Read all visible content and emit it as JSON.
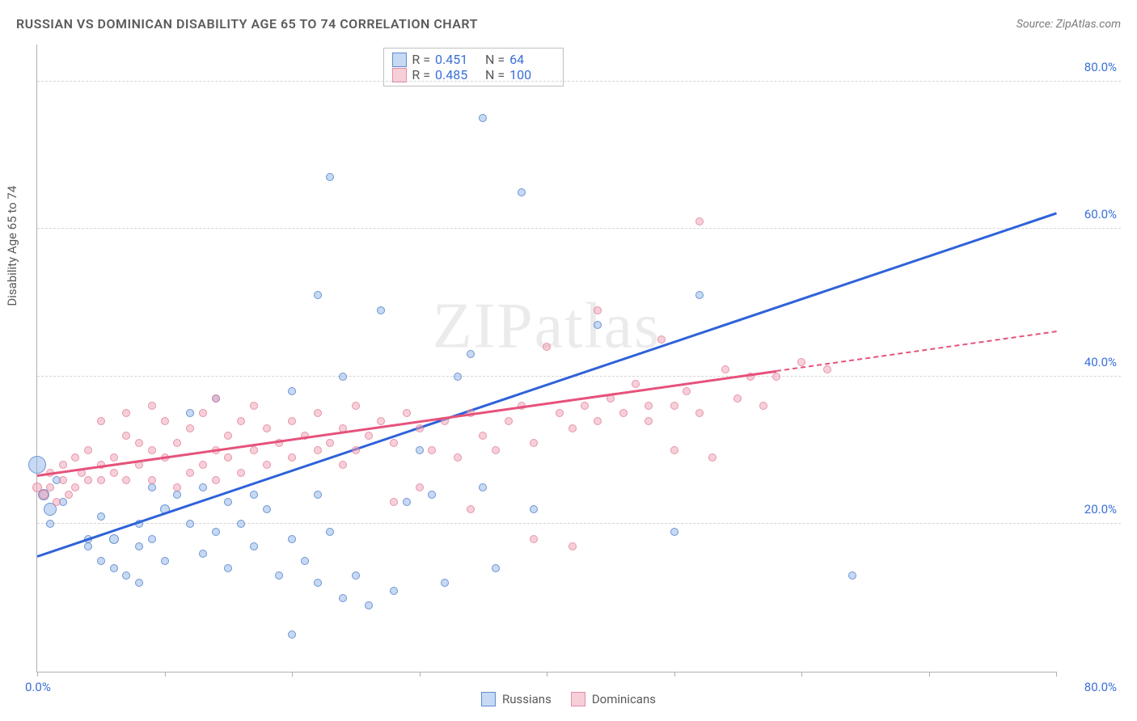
{
  "title": "RUSSIAN VS DOMINICAN DISABILITY AGE 65 TO 74 CORRELATION CHART",
  "source": "Source: ZipAtlas.com",
  "watermark": "ZIPatlas",
  "yaxis_label": "Disability Age 65 to 74",
  "chart": {
    "type": "scatter",
    "xlim": [
      0,
      80
    ],
    "ylim": [
      0,
      85
    ],
    "xticks": [
      0,
      10,
      20,
      30,
      40,
      50,
      60,
      70,
      80
    ],
    "yticks": [
      20,
      40,
      60,
      80
    ],
    "xaxis_labels": {
      "left": "0.0%",
      "right": "80.0%"
    },
    "yaxis_labels": [
      "20.0%",
      "40.0%",
      "60.0%",
      "80.0%"
    ],
    "grid_color": "#d5d5d5",
    "axis_color": "#b0b0b0",
    "background_color": "#ffffff",
    "series": [
      {
        "name": "Russians",
        "color_fill": "rgba(144,180,232,0.5)",
        "color_stroke": "rgba(70,120,200,0.7)",
        "trend_color": "#2e62d9",
        "trend": {
          "x1": 0,
          "y1": 15.5,
          "x2": 80,
          "y2": 62,
          "solid_until_x": 80
        },
        "R": "0.451",
        "N": "64",
        "points": [
          {
            "x": 0,
            "y": 28,
            "r": 22
          },
          {
            "x": 0.5,
            "y": 24,
            "r": 14
          },
          {
            "x": 1,
            "y": 22,
            "r": 16
          },
          {
            "x": 1,
            "y": 20,
            "r": 10
          },
          {
            "x": 1.5,
            "y": 26,
            "r": 10
          },
          {
            "x": 2,
            "y": 23,
            "r": 10
          },
          {
            "x": 4,
            "y": 18,
            "r": 10
          },
          {
            "x": 4,
            "y": 17,
            "r": 10
          },
          {
            "x": 5,
            "y": 21,
            "r": 10
          },
          {
            "x": 5,
            "y": 15,
            "r": 10
          },
          {
            "x": 6,
            "y": 18,
            "r": 12
          },
          {
            "x": 6,
            "y": 14,
            "r": 10
          },
          {
            "x": 7,
            "y": 13,
            "r": 10
          },
          {
            "x": 8,
            "y": 17,
            "r": 10
          },
          {
            "x": 8,
            "y": 20,
            "r": 10
          },
          {
            "x": 8,
            "y": 12,
            "r": 10
          },
          {
            "x": 9,
            "y": 18,
            "r": 10
          },
          {
            "x": 9,
            "y": 25,
            "r": 10
          },
          {
            "x": 10,
            "y": 22,
            "r": 12
          },
          {
            "x": 10,
            "y": 15,
            "r": 10
          },
          {
            "x": 11,
            "y": 24,
            "r": 10
          },
          {
            "x": 12,
            "y": 35,
            "r": 10
          },
          {
            "x": 12,
            "y": 20,
            "r": 10
          },
          {
            "x": 13,
            "y": 25,
            "r": 10
          },
          {
            "x": 13,
            "y": 16,
            "r": 10
          },
          {
            "x": 14,
            "y": 19,
            "r": 10
          },
          {
            "x": 14,
            "y": 37,
            "r": 10
          },
          {
            "x": 15,
            "y": 23,
            "r": 10
          },
          {
            "x": 15,
            "y": 14,
            "r": 10
          },
          {
            "x": 16,
            "y": 20,
            "r": 10
          },
          {
            "x": 17,
            "y": 24,
            "r": 10
          },
          {
            "x": 17,
            "y": 17,
            "r": 10
          },
          {
            "x": 18,
            "y": 22,
            "r": 10
          },
          {
            "x": 19,
            "y": 13,
            "r": 10
          },
          {
            "x": 20,
            "y": 38,
            "r": 10
          },
          {
            "x": 20,
            "y": 18,
            "r": 10
          },
          {
            "x": 20,
            "y": 5,
            "r": 10
          },
          {
            "x": 21,
            "y": 15,
            "r": 10
          },
          {
            "x": 22,
            "y": 24,
            "r": 10
          },
          {
            "x": 22,
            "y": 51,
            "r": 10
          },
          {
            "x": 22,
            "y": 12,
            "r": 10
          },
          {
            "x": 23,
            "y": 19,
            "r": 10
          },
          {
            "x": 23,
            "y": 67,
            "r": 10
          },
          {
            "x": 24,
            "y": 40,
            "r": 10
          },
          {
            "x": 24,
            "y": 10,
            "r": 10
          },
          {
            "x": 25,
            "y": 13,
            "r": 10
          },
          {
            "x": 26,
            "y": 9,
            "r": 10
          },
          {
            "x": 27,
            "y": 49,
            "r": 10
          },
          {
            "x": 28,
            "y": 11,
            "r": 10
          },
          {
            "x": 29,
            "y": 23,
            "r": 10
          },
          {
            "x": 30,
            "y": 30,
            "r": 10
          },
          {
            "x": 31,
            "y": 24,
            "r": 10
          },
          {
            "x": 32,
            "y": 12,
            "r": 10
          },
          {
            "x": 33,
            "y": 40,
            "r": 10
          },
          {
            "x": 34,
            "y": 43,
            "r": 10
          },
          {
            "x": 35,
            "y": 25,
            "r": 10
          },
          {
            "x": 35,
            "y": 75,
            "r": 10
          },
          {
            "x": 36,
            "y": 14,
            "r": 10
          },
          {
            "x": 38,
            "y": 65,
            "r": 10
          },
          {
            "x": 39,
            "y": 22,
            "r": 10
          },
          {
            "x": 44,
            "y": 47,
            "r": 10
          },
          {
            "x": 50,
            "y": 19,
            "r": 10
          },
          {
            "x": 52,
            "y": 51,
            "r": 10
          },
          {
            "x": 64,
            "y": 13,
            "r": 10
          }
        ]
      },
      {
        "name": "Dominicans",
        "color_fill": "rgba(240,160,180,0.5)",
        "color_stroke": "rgba(220,110,140,0.6)",
        "trend_color": "#e6527a",
        "trend": {
          "x1": 0,
          "y1": 26.5,
          "x2": 80,
          "y2": 46,
          "solid_until_x": 58
        },
        "R": "0.485",
        "N": "100",
        "points": [
          {
            "x": 0,
            "y": 25,
            "r": 12
          },
          {
            "x": 0.5,
            "y": 24,
            "r": 12
          },
          {
            "x": 1,
            "y": 27,
            "r": 10
          },
          {
            "x": 1,
            "y": 25,
            "r": 10
          },
          {
            "x": 1.5,
            "y": 23,
            "r": 10
          },
          {
            "x": 2,
            "y": 28,
            "r": 10
          },
          {
            "x": 2,
            "y": 26,
            "r": 10
          },
          {
            "x": 2.5,
            "y": 24,
            "r": 10
          },
          {
            "x": 3,
            "y": 29,
            "r": 10
          },
          {
            "x": 3,
            "y": 25,
            "r": 10
          },
          {
            "x": 3.5,
            "y": 27,
            "r": 10
          },
          {
            "x": 4,
            "y": 26,
            "r": 10
          },
          {
            "x": 4,
            "y": 30,
            "r": 10
          },
          {
            "x": 5,
            "y": 28,
            "r": 10
          },
          {
            "x": 5,
            "y": 26,
            "r": 10
          },
          {
            "x": 5,
            "y": 34,
            "r": 10
          },
          {
            "x": 6,
            "y": 29,
            "r": 10
          },
          {
            "x": 6,
            "y": 27,
            "r": 10
          },
          {
            "x": 7,
            "y": 26,
            "r": 10
          },
          {
            "x": 7,
            "y": 32,
            "r": 10
          },
          {
            "x": 7,
            "y": 35,
            "r": 10
          },
          {
            "x": 8,
            "y": 28,
            "r": 10
          },
          {
            "x": 8,
            "y": 31,
            "r": 10
          },
          {
            "x": 9,
            "y": 26,
            "r": 10
          },
          {
            "x": 9,
            "y": 30,
            "r": 10
          },
          {
            "x": 9,
            "y": 36,
            "r": 10
          },
          {
            "x": 10,
            "y": 29,
            "r": 10
          },
          {
            "x": 10,
            "y": 34,
            "r": 10
          },
          {
            "x": 11,
            "y": 25,
            "r": 10
          },
          {
            "x": 11,
            "y": 31,
            "r": 10
          },
          {
            "x": 12,
            "y": 27,
            "r": 10
          },
          {
            "x": 12,
            "y": 33,
            "r": 10
          },
          {
            "x": 13,
            "y": 28,
            "r": 10
          },
          {
            "x": 13,
            "y": 35,
            "r": 10
          },
          {
            "x": 14,
            "y": 26,
            "r": 10
          },
          {
            "x": 14,
            "y": 30,
            "r": 10
          },
          {
            "x": 14,
            "y": 37,
            "r": 10
          },
          {
            "x": 15,
            "y": 29,
            "r": 10
          },
          {
            "x": 15,
            "y": 32,
            "r": 10
          },
          {
            "x": 16,
            "y": 27,
            "r": 10
          },
          {
            "x": 16,
            "y": 34,
            "r": 10
          },
          {
            "x": 17,
            "y": 30,
            "r": 10
          },
          {
            "x": 17,
            "y": 36,
            "r": 10
          },
          {
            "x": 18,
            "y": 28,
            "r": 10
          },
          {
            "x": 18,
            "y": 33,
            "r": 10
          },
          {
            "x": 19,
            "y": 31,
            "r": 10
          },
          {
            "x": 20,
            "y": 29,
            "r": 10
          },
          {
            "x": 20,
            "y": 34,
            "r": 10
          },
          {
            "x": 21,
            "y": 32,
            "r": 10
          },
          {
            "x": 22,
            "y": 30,
            "r": 10
          },
          {
            "x": 22,
            "y": 35,
            "r": 10
          },
          {
            "x": 23,
            "y": 31,
            "r": 10
          },
          {
            "x": 24,
            "y": 28,
            "r": 10
          },
          {
            "x": 24,
            "y": 33,
            "r": 10
          },
          {
            "x": 25,
            "y": 30,
            "r": 10
          },
          {
            "x": 25,
            "y": 36,
            "r": 10
          },
          {
            "x": 26,
            "y": 32,
            "r": 10
          },
          {
            "x": 27,
            "y": 34,
            "r": 10
          },
          {
            "x": 28,
            "y": 23,
            "r": 10
          },
          {
            "x": 28,
            "y": 31,
            "r": 10
          },
          {
            "x": 29,
            "y": 35,
            "r": 10
          },
          {
            "x": 30,
            "y": 25,
            "r": 10
          },
          {
            "x": 30,
            "y": 33,
            "r": 10
          },
          {
            "x": 31,
            "y": 30,
            "r": 10
          },
          {
            "x": 32,
            "y": 34,
            "r": 10
          },
          {
            "x": 33,
            "y": 29,
            "r": 10
          },
          {
            "x": 34,
            "y": 22,
            "r": 10
          },
          {
            "x": 34,
            "y": 35,
            "r": 10
          },
          {
            "x": 35,
            "y": 32,
            "r": 10
          },
          {
            "x": 36,
            "y": 30,
            "r": 10
          },
          {
            "x": 37,
            "y": 34,
            "r": 10
          },
          {
            "x": 38,
            "y": 36,
            "r": 10
          },
          {
            "x": 39,
            "y": 18,
            "r": 10
          },
          {
            "x": 39,
            "y": 31,
            "r": 10
          },
          {
            "x": 40,
            "y": 44,
            "r": 10
          },
          {
            "x": 41,
            "y": 35,
            "r": 10
          },
          {
            "x": 42,
            "y": 33,
            "r": 10
          },
          {
            "x": 42,
            "y": 17,
            "r": 10
          },
          {
            "x": 43,
            "y": 36,
            "r": 10
          },
          {
            "x": 44,
            "y": 49,
            "r": 10
          },
          {
            "x": 44,
            "y": 34,
            "r": 10
          },
          {
            "x": 45,
            "y": 37,
            "r": 10
          },
          {
            "x": 46,
            "y": 35,
            "r": 10
          },
          {
            "x": 47,
            "y": 39,
            "r": 10
          },
          {
            "x": 48,
            "y": 36,
            "r": 10
          },
          {
            "x": 48,
            "y": 34,
            "r": 10
          },
          {
            "x": 49,
            "y": 45,
            "r": 10
          },
          {
            "x": 50,
            "y": 36,
            "r": 10
          },
          {
            "x": 50,
            "y": 30,
            "r": 10
          },
          {
            "x": 51,
            "y": 38,
            "r": 10
          },
          {
            "x": 52,
            "y": 61,
            "r": 10
          },
          {
            "x": 52,
            "y": 35,
            "r": 10
          },
          {
            "x": 53,
            "y": 29,
            "r": 10
          },
          {
            "x": 54,
            "y": 41,
            "r": 10
          },
          {
            "x": 55,
            "y": 37,
            "r": 10
          },
          {
            "x": 56,
            "y": 40,
            "r": 10
          },
          {
            "x": 57,
            "y": 36,
            "r": 10
          },
          {
            "x": 58,
            "y": 40,
            "r": 10
          },
          {
            "x": 60,
            "y": 42,
            "r": 10
          },
          {
            "x": 62,
            "y": 41,
            "r": 10
          }
        ]
      }
    ]
  },
  "legend": {
    "items": [
      {
        "label": "Russians",
        "swatch": "blue"
      },
      {
        "label": "Dominicans",
        "swatch": "pink"
      }
    ]
  },
  "stats_labels": {
    "R": "R =",
    "N": "N ="
  }
}
